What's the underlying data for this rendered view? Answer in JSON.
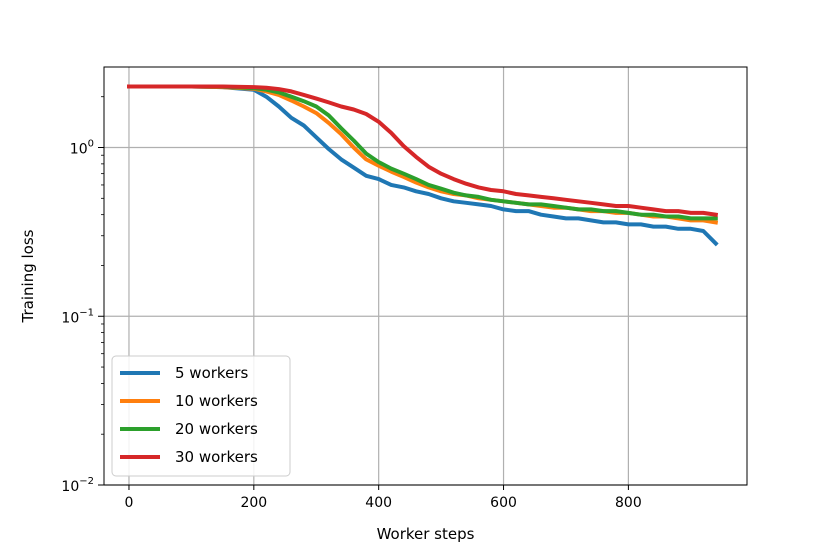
{
  "chart_data": {
    "type": "line",
    "xlabel": "Worker steps",
    "ylabel": "Training loss",
    "xlim": [
      -40,
      990
    ],
    "ylim": [
      0.01,
      3.0
    ],
    "yscale": "log",
    "grid": true,
    "legend_position": "lower-left",
    "xticks": [
      {
        "value": 0,
        "label": "0"
      },
      {
        "value": 200,
        "label": "200"
      },
      {
        "value": 400,
        "label": "400"
      },
      {
        "value": 600,
        "label": "600"
      },
      {
        "value": 800,
        "label": "800"
      }
    ],
    "yticks": [
      {
        "value": 1,
        "base": "10",
        "exp": "0"
      },
      {
        "value": 0.1,
        "base": "10",
        "exp": "−1"
      },
      {
        "value": 0.01,
        "base": "10",
        "exp": "−2"
      }
    ],
    "series": [
      {
        "name": "5 workers",
        "color": "#1f77b4",
        "x": [
          0,
          50,
          100,
          150,
          200,
          220,
          240,
          260,
          280,
          300,
          320,
          340,
          360,
          380,
          400,
          420,
          440,
          460,
          480,
          500,
          520,
          540,
          560,
          580,
          600,
          620,
          640,
          660,
          680,
          700,
          720,
          740,
          760,
          780,
          800,
          820,
          840,
          860,
          880,
          900,
          920,
          940
        ],
        "y": [
          2.3,
          2.3,
          2.3,
          2.28,
          2.2,
          2.0,
          1.75,
          1.5,
          1.35,
          1.15,
          0.98,
          0.85,
          0.76,
          0.68,
          0.65,
          0.6,
          0.58,
          0.55,
          0.53,
          0.5,
          0.48,
          0.47,
          0.46,
          0.45,
          0.43,
          0.42,
          0.42,
          0.4,
          0.39,
          0.38,
          0.38,
          0.37,
          0.36,
          0.36,
          0.35,
          0.35,
          0.34,
          0.34,
          0.33,
          0.33,
          0.32,
          0.27
        ]
      },
      {
        "name": "10 workers",
        "color": "#ff7f0e",
        "x": [
          0,
          50,
          100,
          150,
          200,
          220,
          240,
          260,
          280,
          300,
          320,
          340,
          360,
          380,
          400,
          420,
          440,
          460,
          480,
          500,
          520,
          540,
          560,
          580,
          600,
          620,
          640,
          660,
          680,
          700,
          720,
          740,
          760,
          780,
          800,
          820,
          840,
          860,
          880,
          900,
          920,
          940
        ],
        "y": [
          2.3,
          2.3,
          2.3,
          2.28,
          2.23,
          2.15,
          2.05,
          1.9,
          1.75,
          1.6,
          1.4,
          1.2,
          1.0,
          0.85,
          0.78,
          0.72,
          0.67,
          0.62,
          0.58,
          0.55,
          0.53,
          0.52,
          0.5,
          0.49,
          0.48,
          0.47,
          0.46,
          0.45,
          0.44,
          0.44,
          0.43,
          0.42,
          0.42,
          0.41,
          0.41,
          0.4,
          0.39,
          0.39,
          0.38,
          0.37,
          0.37,
          0.36
        ]
      },
      {
        "name": "20 workers",
        "color": "#2ca02c",
        "x": [
          0,
          50,
          100,
          150,
          200,
          220,
          240,
          260,
          280,
          300,
          320,
          340,
          360,
          380,
          400,
          420,
          440,
          460,
          480,
          500,
          520,
          540,
          560,
          580,
          600,
          620,
          640,
          660,
          680,
          700,
          720,
          740,
          760,
          780,
          800,
          820,
          840,
          860,
          880,
          900,
          920,
          940
        ],
        "y": [
          2.3,
          2.3,
          2.3,
          2.29,
          2.25,
          2.2,
          2.12,
          2.0,
          1.88,
          1.75,
          1.55,
          1.3,
          1.1,
          0.92,
          0.82,
          0.75,
          0.7,
          0.65,
          0.6,
          0.57,
          0.54,
          0.52,
          0.51,
          0.49,
          0.48,
          0.47,
          0.46,
          0.46,
          0.45,
          0.44,
          0.43,
          0.43,
          0.42,
          0.42,
          0.41,
          0.4,
          0.4,
          0.39,
          0.39,
          0.38,
          0.38,
          0.38
        ]
      },
      {
        "name": "30 workers",
        "color": "#d62728",
        "x": [
          0,
          50,
          100,
          150,
          200,
          220,
          240,
          260,
          280,
          300,
          320,
          340,
          360,
          380,
          400,
          420,
          440,
          460,
          480,
          500,
          520,
          540,
          560,
          580,
          600,
          620,
          640,
          660,
          680,
          700,
          720,
          740,
          760,
          780,
          800,
          820,
          840,
          860,
          880,
          900,
          920,
          940
        ],
        "y": [
          2.3,
          2.3,
          2.3,
          2.3,
          2.28,
          2.26,
          2.22,
          2.15,
          2.05,
          1.95,
          1.85,
          1.75,
          1.68,
          1.58,
          1.42,
          1.22,
          1.02,
          0.88,
          0.77,
          0.7,
          0.65,
          0.61,
          0.58,
          0.56,
          0.55,
          0.53,
          0.52,
          0.51,
          0.5,
          0.49,
          0.48,
          0.47,
          0.46,
          0.45,
          0.45,
          0.44,
          0.43,
          0.42,
          0.42,
          0.41,
          0.41,
          0.4
        ]
      }
    ]
  }
}
